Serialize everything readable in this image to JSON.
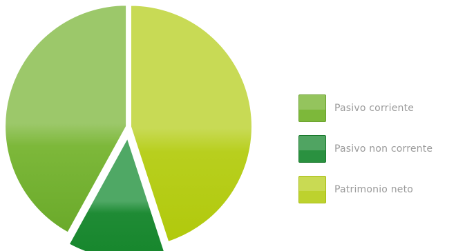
{
  "chart_data": {
    "type": "pie",
    "title": "",
    "slices": [
      {
        "label": "Pasivo corriente",
        "value": 42,
        "color": "#7db83a",
        "color_top": "#9cc86a",
        "color_bottom": "#6aaa2a"
      },
      {
        "label": "Pasivo non corrente",
        "value": 13,
        "color": "#1f8b35",
        "color_top": "#4fa865",
        "color_bottom": "#16862c"
      },
      {
        "label": "Patrimonio neto",
        "value": 45,
        "color": "#b8cf1e",
        "color_top": "#c8da55",
        "color_bottom": "#b1c90c"
      }
    ],
    "legend_position": "right",
    "exploded_slice": "Pasivo non corrente"
  }
}
